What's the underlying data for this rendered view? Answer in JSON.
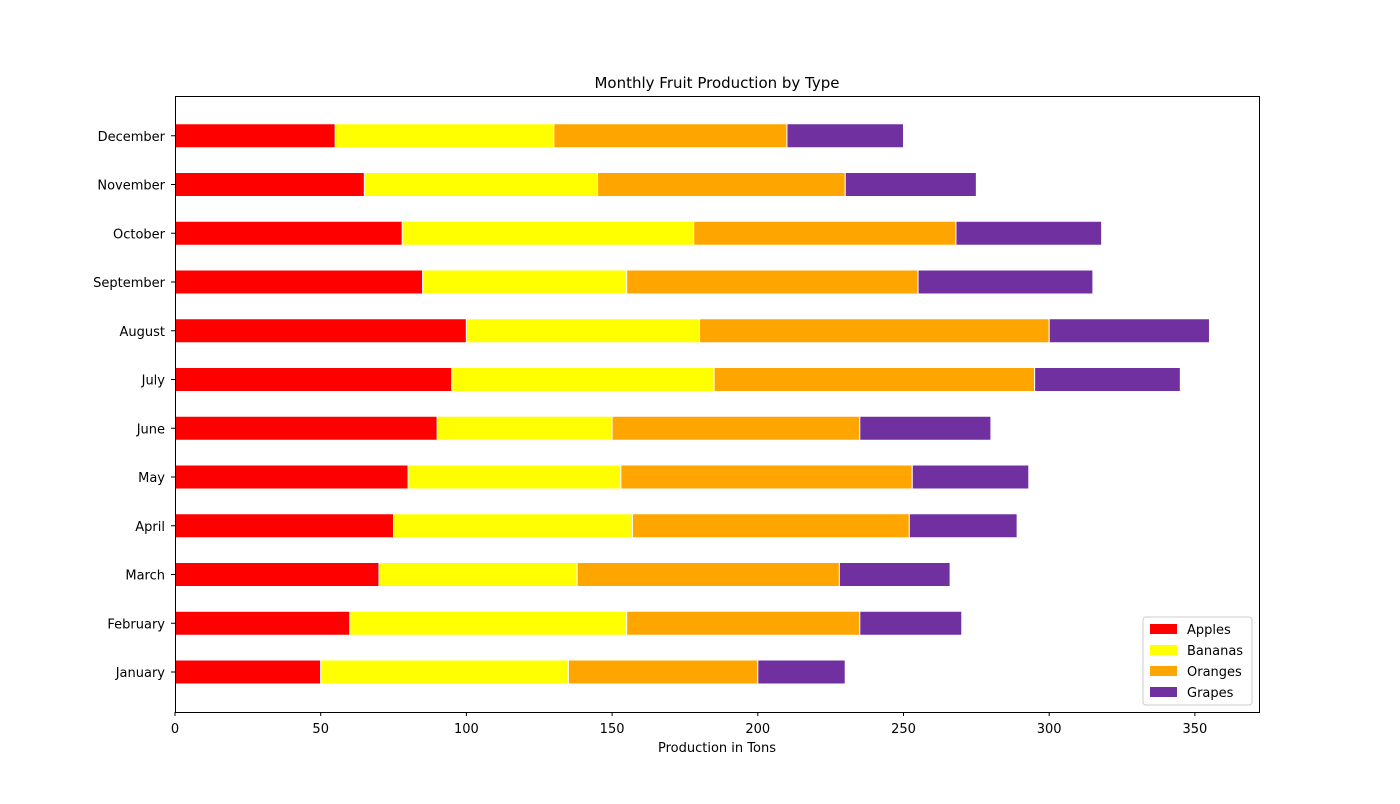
{
  "chart_data": {
    "type": "bar",
    "orientation": "horizontal",
    "stacked": true,
    "title": "Monthly Fruit Production by Type",
    "xlabel": "Production in Tons",
    "ylabel": "",
    "xlim": [
      0,
      372
    ],
    "xticks": [
      0,
      50,
      100,
      150,
      200,
      250,
      300,
      350
    ],
    "grid": false,
    "legend_position": "lower-right",
    "categories": [
      "January",
      "February",
      "March",
      "April",
      "May",
      "June",
      "July",
      "August",
      "September",
      "October",
      "November",
      "December"
    ],
    "series": [
      {
        "name": "Apples",
        "color": "#ff0000",
        "values": [
          50,
          60,
          70,
          75,
          80,
          90,
          95,
          100,
          85,
          78,
          65,
          55
        ]
      },
      {
        "name": "Bananas",
        "color": "#ffff00",
        "values": [
          85,
          95,
          68,
          82,
          73,
          60,
          90,
          80,
          70,
          100,
          80,
          75
        ]
      },
      {
        "name": "Oranges",
        "color": "#ffa500",
        "values": [
          65,
          80,
          90,
          95,
          100,
          85,
          110,
          120,
          100,
          90,
          85,
          80
        ]
      },
      {
        "name": "Grapes",
        "color": "#7030a0",
        "values": [
          30,
          35,
          38,
          37,
          40,
          45,
          50,
          55,
          60,
          50,
          45,
          40
        ]
      }
    ]
  }
}
